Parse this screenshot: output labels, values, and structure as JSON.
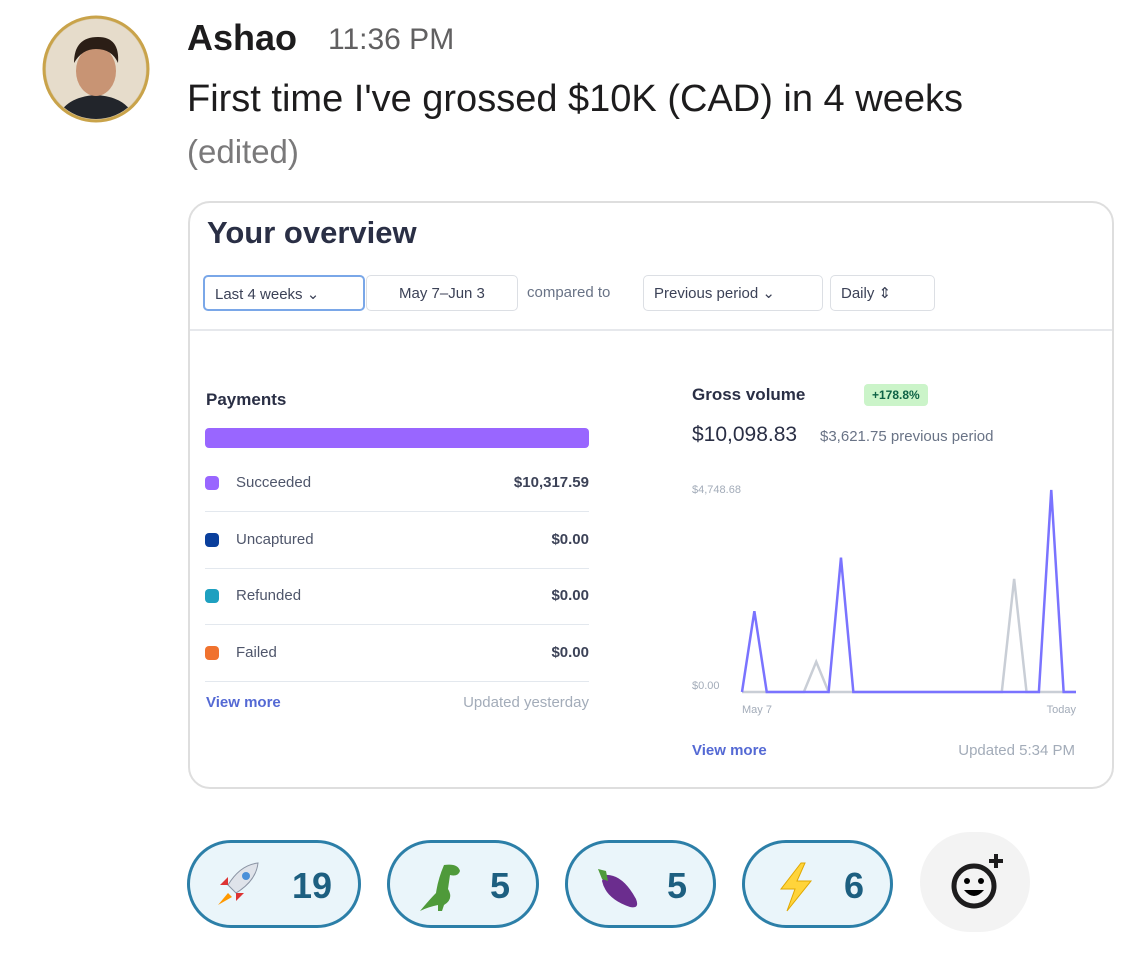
{
  "message": {
    "author": "Ashao",
    "time": "11:36 PM",
    "text": "First time I've grossed $10K (CAD) in 4 weeks",
    "edited": "(edited)"
  },
  "card": {
    "title": "Your overview",
    "filters": {
      "range": "Last 4 weeks",
      "dates": "May 7–Jun 3",
      "compared_label": "compared to",
      "comparison": "Previous period",
      "interval": "Daily"
    },
    "payments": {
      "title": "Payments",
      "rows": [
        {
          "label": "Succeeded",
          "amount": "$10,317.59",
          "color": "#9966ff"
        },
        {
          "label": "Uncaptured",
          "amount": "$0.00",
          "color": "#0a3f9c"
        },
        {
          "label": "Refunded",
          "amount": "$0.00",
          "color": "#1ea0c0"
        },
        {
          "label": "Failed",
          "amount": "$0.00",
          "color": "#f0722e"
        }
      ],
      "view_more": "View more",
      "updated": "Updated yesterday"
    },
    "gross_volume": {
      "title": "Gross volume",
      "change": "+178.8%",
      "total": "$10,098.83",
      "previous": "$3,621.75 previous period",
      "view_more": "View more",
      "updated": "Updated 5:34 PM",
      "chart": {
        "type": "line",
        "categories": [
          "May 7",
          null,
          null,
          null,
          null,
          null,
          null,
          null,
          null,
          null,
          null,
          null,
          null,
          null,
          null,
          null,
          null,
          null,
          null,
          null,
          null,
          null,
          null,
          null,
          null,
          null,
          null,
          "Today"
        ],
        "series": [
          {
            "color": "#c9ced6",
            "values": [
              0,
              0,
              0,
              0,
              0,
              0,
              710,
              0,
              0,
              0,
              0,
              0,
              0,
              0,
              0,
              0,
              0,
              0,
              0,
              0,
              0,
              0,
              2660,
              0,
              0,
              0,
              0,
              0
            ]
          },
          {
            "color": "#7a73ff",
            "values": [
              0,
              1900,
              0,
              0,
              0,
              0,
              0,
              0,
              3160,
              0,
              0,
              0,
              0,
              0,
              0,
              0,
              0,
              0,
              0,
              0,
              0,
              0,
              0,
              0,
              0,
              4748.68,
              0,
              0
            ]
          }
        ],
        "ylim": [
          0,
          4748.68
        ],
        "yticks": [
          {
            "value": 0,
            "label": "$0.00"
          },
          {
            "value": 4748.68,
            "label": "$4,748.68"
          }
        ]
      }
    }
  },
  "reactions": [
    {
      "count": 19
    },
    {
      "count": 5
    },
    {
      "count": 5
    },
    {
      "count": 6
    }
  ]
}
